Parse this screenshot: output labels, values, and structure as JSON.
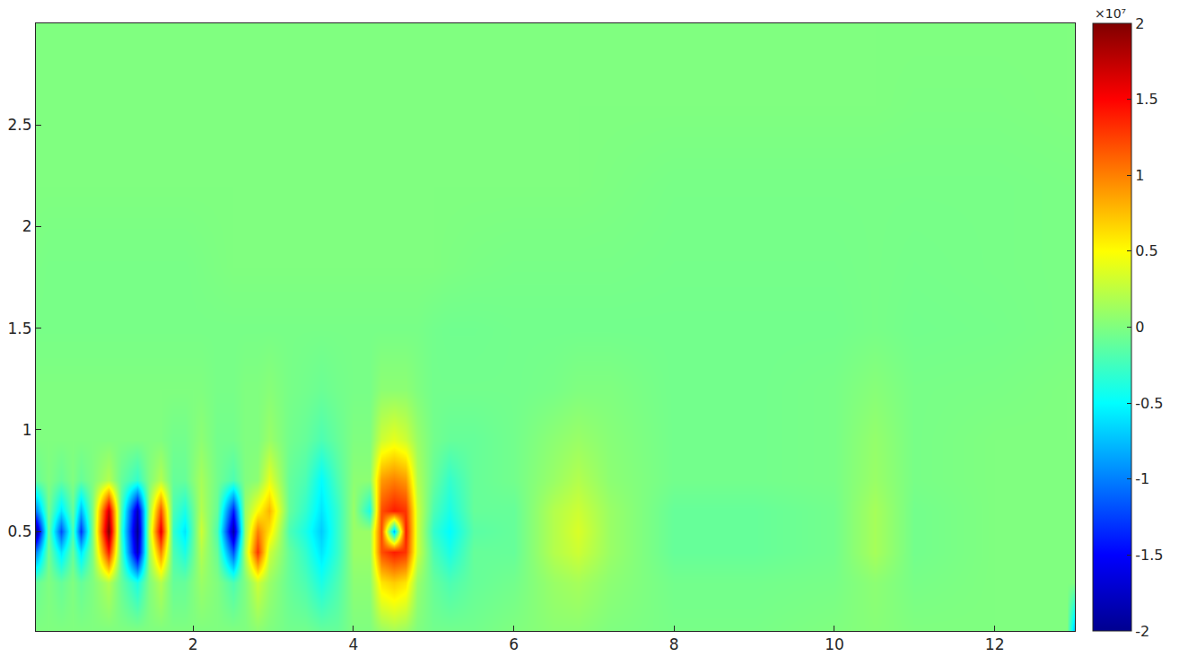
{
  "chart_data": {
    "type": "heatmap",
    "x": [
      0.04,
      0.2,
      0.35,
      0.5,
      0.6,
      0.75,
      0.95,
      1.1,
      1.3,
      1.45,
      1.6,
      1.75,
      1.9,
      2.1,
      2.3,
      2.5,
      2.65,
      2.8,
      2.95,
      3.2,
      3.4,
      3.6,
      3.8,
      4.0,
      4.2,
      4.35,
      4.5,
      4.65,
      4.8,
      5.0,
      5.2,
      5.5,
      6.0,
      6.5,
      6.8,
      7.2,
      8,
      9,
      10,
      10.5,
      11,
      12,
      12.9,
      13.0
    ],
    "y": [
      0.01,
      0.25,
      0.4,
      0.5,
      0.6,
      0.75,
      0.95,
      1.2,
      1.5,
      1.8,
      2.2,
      2.6,
      3.0
    ],
    "z": [
      [
        0,
        0,
        0,
        0,
        0,
        0,
        0,
        0,
        0,
        0,
        0,
        0,
        0,
        0,
        0,
        0,
        0,
        500000.0,
        0,
        -500000.0,
        -500000.0,
        -1000000.0,
        -1000000.0,
        0,
        0,
        1000000.0,
        1500000.0,
        1000000.0,
        0,
        -500000.0,
        -500000.0,
        -500000.0,
        0,
        500000.0,
        500000.0,
        0,
        -300000.0,
        -300000.0,
        0,
        300000.0,
        0,
        0,
        0,
        -8000000.0
      ],
      [
        -1000000.0,
        0,
        -1000000.0,
        0,
        -1000000.0,
        0,
        2000000.0,
        -1000000.0,
        -4000000.0,
        0,
        2000000.0,
        -1000000.0,
        -1000000.0,
        1000000.0,
        0,
        -2000000.0,
        0,
        3000000.0,
        1000000.0,
        -1000000.0,
        -2000000.0,
        -4000000.0,
        -2000000.0,
        500000.0,
        500000.0,
        6000000.0,
        7000000.0,
        6000000.0,
        1000000.0,
        -1000000.0,
        -2000000.0,
        -1000000.0,
        -500000.0,
        1000000.0,
        1500000.0,
        500000.0,
        -500000.0,
        -500000.0,
        -300000.0,
        500000.0,
        -300000.0,
        0,
        0,
        0
      ],
      [
        -10000000.0,
        -500000.0,
        -6000000.0,
        -1000000.0,
        -6000000.0,
        0,
        14000000.0,
        -2000000.0,
        -18000000.0,
        1000000.0,
        10000000.0,
        -2000000.0,
        -4000000.0,
        2000000.0,
        -1000000.0,
        -12000000.0,
        2000000.0,
        13000000.0,
        3000000.0,
        -1000000.0,
        -3000000.0,
        -6000000.0,
        -3000000.0,
        1000000.0,
        1000000.0,
        12000000.0,
        14000000.0,
        13000000.0,
        3000000.0,
        -2000000.0,
        -4000000.0,
        -1000000.0,
        -1000000.0,
        2000000.0,
        3000000.0,
        1000000.0,
        -1000000.0,
        -1000000.0,
        -500000.0,
        1500000.0,
        -500000.0,
        0,
        0,
        0
      ],
      [
        -20000000.0,
        -1000000.0,
        -12000000.0,
        -2000000.0,
        -13000000.0,
        0,
        20000000.0,
        -3000000.0,
        -20000000.0,
        2000000.0,
        16000000.0,
        -3000000.0,
        -6000000.0,
        3000000.0,
        -2000000.0,
        -19000000.0,
        1000000.0,
        10000000.0,
        6000000.0,
        -2000000.0,
        -4000000.0,
        -7000000.0,
        -3000000.0,
        1000000.0,
        1000000.0,
        12000000.0,
        -8000000.0,
        14000000.0,
        3000000.0,
        -3000000.0,
        -5000000.0,
        -1500000.0,
        -1000000.0,
        2000000.0,
        3500000.0,
        1000000.0,
        -1000000.0,
        -1000000.0,
        -500000.0,
        1500000.0,
        -500000.0,
        0,
        0,
        0
      ],
      [
        -10000000.0,
        -500000.0,
        -6000000.0,
        -1000000.0,
        -8000000.0,
        0,
        17000000.0,
        -2000000.0,
        -18000000.0,
        1000000.0,
        12000000.0,
        -2000000.0,
        -4000000.0,
        2000000.0,
        -1000000.0,
        -14000000.0,
        1000000.0,
        5000000.0,
        8000000.0,
        -1000000.0,
        -3000000.0,
        -6000000.0,
        -3000000.0,
        1000000.0,
        -4000000.0,
        12000000.0,
        14000000.0,
        13000000.0,
        3000000.0,
        -2000000.0,
        -4000000.0,
        -1000000.0,
        -1000000.0,
        2000000.0,
        3000000.0,
        1000000.0,
        -1000000.0,
        -1000000.0,
        -500000.0,
        1500000.0,
        -500000.0,
        0,
        0,
        0
      ],
      [
        -1000000.0,
        0,
        -1000000.0,
        0,
        -1000000.0,
        0,
        2000000.0,
        -1000000.0,
        -3000000.0,
        0,
        2000000.0,
        -1000000.0,
        -1000000.0,
        1500000.0,
        -500000.0,
        -2000000.0,
        0,
        500000.0,
        4000000.0,
        -1000000.0,
        -2000000.0,
        -5000000.0,
        -2000000.0,
        500000.0,
        500000.0,
        9000000.0,
        10000000.0,
        9000000.0,
        2000000.0,
        -1000000.0,
        -3000000.0,
        -1000000.0,
        -500000.0,
        1000000.0,
        2000000.0,
        500000.0,
        -500000.0,
        -500000.0,
        -300000.0,
        1000000.0,
        -300000.0,
        0,
        0,
        0
      ],
      [
        0,
        0,
        0,
        0,
        0,
        0,
        0,
        0,
        0,
        0,
        0,
        -500000.0,
        -500000.0,
        500000.0,
        -500000.0,
        -500000.0,
        0,
        0,
        1000000.0,
        -500000.0,
        -1000000.0,
        -2000000.0,
        -1000000.0,
        0,
        0,
        3000000.0,
        4000000.0,
        3000000.0,
        1000000.0,
        -500000.0,
        -1000000.0,
        -1000000.0,
        -500000.0,
        500000.0,
        1000000.0,
        300000.0,
        -500000.0,
        -500000.0,
        -300000.0,
        800000.0,
        -300000.0,
        0,
        0,
        0
      ],
      [
        0,
        0,
        0,
        0,
        0,
        0,
        0,
        0,
        0,
        0,
        0,
        0,
        0,
        0,
        -300000.0,
        -300000.0,
        0,
        0,
        300000.0,
        -300000.0,
        -500000.0,
        -800000.0,
        -500000.0,
        -300000.0,
        -300000.0,
        500000.0,
        500000.0,
        500000.0,
        0,
        -500000.0,
        -500000.0,
        -500000.0,
        -500000.0,
        -300000.0,
        0,
        0,
        -500000.0,
        -500000.0,
        -300000.0,
        300000.0,
        -300000.0,
        -200000.0,
        0,
        0
      ],
      [
        -300000.0,
        -300000.0,
        -300000.0,
        -300000.0,
        -300000.0,
        -300000.0,
        -300000.0,
        -300000.0,
        -300000.0,
        -300000.0,
        -300000.0,
        -300000.0,
        -300000.0,
        -300000.0,
        -300000.0,
        -300000.0,
        -300000.0,
        -300000.0,
        -300000.0,
        -300000.0,
        -300000.0,
        -300000.0,
        -300000.0,
        -300000.0,
        -300000.0,
        -300000.0,
        -300000.0,
        -300000.0,
        -300000.0,
        -500000.0,
        -600000.0,
        -600000.0,
        -500000.0,
        -500000.0,
        -500000.0,
        -500000.0,
        -500000.0,
        -500000.0,
        -500000.0,
        -300000.0,
        -500000.0,
        -400000.0,
        -200000.0,
        -200000.0
      ],
      [
        -200000.0,
        -300000.0,
        -300000.0,
        -300000.0,
        -300000.0,
        -300000.0,
        -300000.0,
        -300000.0,
        -300000.0,
        -300000.0,
        -300000.0,
        -300000.0,
        -300000.0,
        -200000.0,
        -100000.0,
        0,
        0,
        0,
        0,
        0,
        0,
        0,
        0,
        0,
        0,
        0,
        0,
        0,
        0,
        0,
        -100000.0,
        -200000.0,
        -300000.0,
        -300000.0,
        -300000.0,
        -300000.0,
        -400000.0,
        -400000.0,
        -400000.0,
        -300000.0,
        -400000.0,
        -300000.0,
        -200000.0,
        -200000.0
      ],
      [
        0,
        0,
        0,
        0,
        0,
        0,
        0,
        0,
        0,
        0,
        0,
        0,
        0,
        0,
        0,
        0,
        0,
        0,
        0,
        0,
        0,
        0,
        0,
        0,
        0,
        0,
        0,
        0,
        0,
        0,
        0,
        0,
        0,
        0,
        0,
        -100000.0,
        -300000.0,
        -300000.0,
        -300000.0,
        -300000.0,
        -300000.0,
        -300000.0,
        -200000.0,
        -200000.0
      ],
      [
        0,
        0,
        0,
        0,
        0,
        0,
        0,
        0,
        0,
        0,
        0,
        0,
        0,
        0,
        0,
        0,
        0,
        0,
        0,
        0,
        0,
        0,
        0,
        0,
        0,
        0,
        0,
        0,
        0,
        0,
        0,
        0,
        0,
        0,
        0,
        0,
        0,
        0,
        0,
        0,
        -100000.0,
        -100000.0,
        0,
        0
      ],
      [
        0,
        0,
        0,
        0,
        0,
        0,
        0,
        0,
        0,
        0,
        0,
        0,
        0,
        0,
        0,
        0,
        0,
        0,
        0,
        0,
        0,
        0,
        0,
        0,
        0,
        0,
        0,
        0,
        0,
        0,
        0,
        0,
        0,
        0,
        0,
        0,
        0,
        0,
        0,
        0,
        0,
        0,
        0,
        0
      ]
    ],
    "xlim": [
      0.04,
      13.0
    ],
    "xticks": [
      2,
      4,
      6,
      8,
      10,
      12
    ],
    "ylim": [
      0.01,
      3.0
    ],
    "yticks": [
      0.5,
      1,
      1.5,
      2,
      2.5
    ],
    "grid": false,
    "colorbar": {
      "range": [
        -20000000,
        20000000
      ],
      "ticks": [
        {
          "value": -20000000,
          "label": "-2"
        },
        {
          "value": -15000000,
          "label": "-1.5"
        },
        {
          "value": -10000000,
          "label": "-1"
        },
        {
          "value": -5000000,
          "label": "-0.5"
        },
        {
          "value": 0,
          "label": "0"
        },
        {
          "value": 5000000,
          "label": "0.5"
        },
        {
          "value": 10000000,
          "label": "1"
        },
        {
          "value": 15000000,
          "label": "1.5"
        },
        {
          "value": 20000000,
          "label": "2"
        }
      ],
      "label": "×10⁷"
    }
  }
}
